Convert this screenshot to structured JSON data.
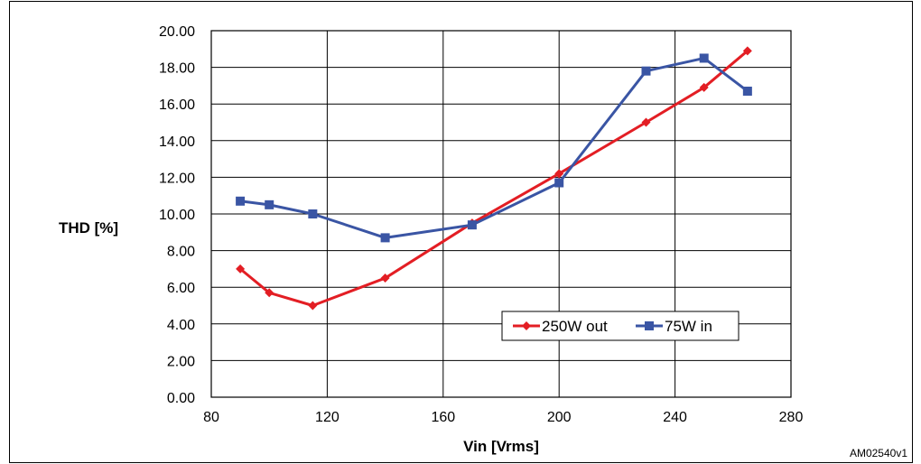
{
  "figure_id": "AM02540v1",
  "chart_data": {
    "type": "line",
    "xlabel": "Vin [Vrms]",
    "ylabel": "THD [%]",
    "xlim": [
      80,
      280
    ],
    "ylim": [
      0,
      20
    ],
    "x_ticks": [
      "80",
      "120",
      "160",
      "200",
      "240",
      "280"
    ],
    "y_ticks": [
      "0.00",
      "2.00",
      "4.00",
      "6.00",
      "8.00",
      "10.00",
      "12.00",
      "14.00",
      "16.00",
      "18.00",
      "20.00"
    ],
    "grid": true,
    "legend_position": "bottom-right",
    "series": [
      {
        "name": "250W out",
        "color": "#e31e24",
        "marker": "diamond",
        "x": [
          90,
          100,
          115,
          140,
          170,
          200,
          230,
          250,
          265
        ],
        "y": [
          7.0,
          5.7,
          5.0,
          6.5,
          9.5,
          12.2,
          15.0,
          16.9,
          18.9
        ]
      },
      {
        "name": "75W in",
        "color": "#3a55a4",
        "marker": "square",
        "x": [
          90,
          100,
          115,
          140,
          170,
          200,
          230,
          250,
          265
        ],
        "y": [
          10.7,
          10.5,
          10.0,
          8.7,
          9.4,
          11.7,
          17.8,
          18.5,
          16.7
        ]
      }
    ]
  }
}
